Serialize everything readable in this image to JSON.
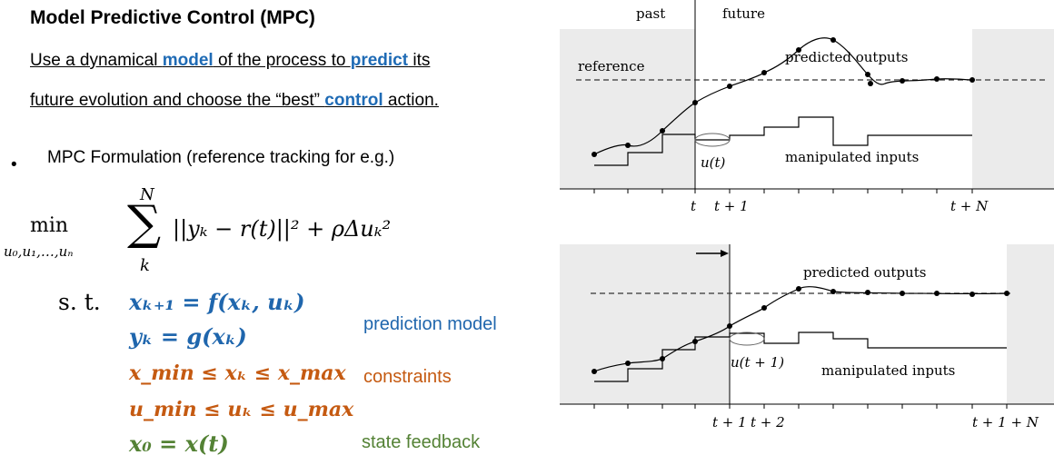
{
  "title": "Model Predictive Control (MPC)",
  "intro": {
    "l1_a": "Use a dynamical ",
    "l1_model": "model",
    "l1_b": " of the process to ",
    "l1_predict": "predict",
    "l1_c": " its",
    "l2_a": "future evolution and choose the “best” ",
    "l2_control": "control",
    "l2_b": " action."
  },
  "bullet": {
    "dot": "•",
    "text": "MPC Formulation (reference tracking  for e.g.)"
  },
  "formula": {
    "min": "min",
    "min_sub": "u₀,u₁,…,uₙ",
    "sum": "∑",
    "sum_top": "N",
    "sum_bottom": "k",
    "objective": "||yₖ − r(t)||² + ρΔuₖ²",
    "st": "s. t.",
    "c1": "xₖ₊₁ = f(xₖ, uₖ)",
    "c2": "yₖ = g(xₖ)",
    "c3": "x_min ≤ xₖ ≤ x_max",
    "c4": "u_min ≤ uₖ ≤ u_max",
    "c5": "x₀ = x(t)"
  },
  "labels": {
    "prediction_model": "prediction model",
    "constraints": "constraints",
    "state_feedback": "state feedback"
  },
  "top_chart": {
    "past": "past",
    "future": "future",
    "reference": "reference",
    "predicted_outputs": "predicted outputs",
    "manipulated_inputs": "manipulated inputs",
    "u_label": "u(t)",
    "tick_t": "t",
    "tick_t1": "t + 1",
    "tick_tN": "t + N"
  },
  "bottom_chart": {
    "predicted_outputs": "predicted outputs",
    "manipulated_inputs": "manipulated inputs",
    "u_label": "u(t + 1)",
    "tick_t1": "t + 1",
    "tick_t2": "t + 2",
    "tick_tN": "t + 1 + N"
  },
  "colors": {
    "highlight": "#1f6bb5",
    "blue": "#1f66ad",
    "orange": "#c55a11",
    "green": "#548235",
    "shade": "#ebebeb"
  }
}
